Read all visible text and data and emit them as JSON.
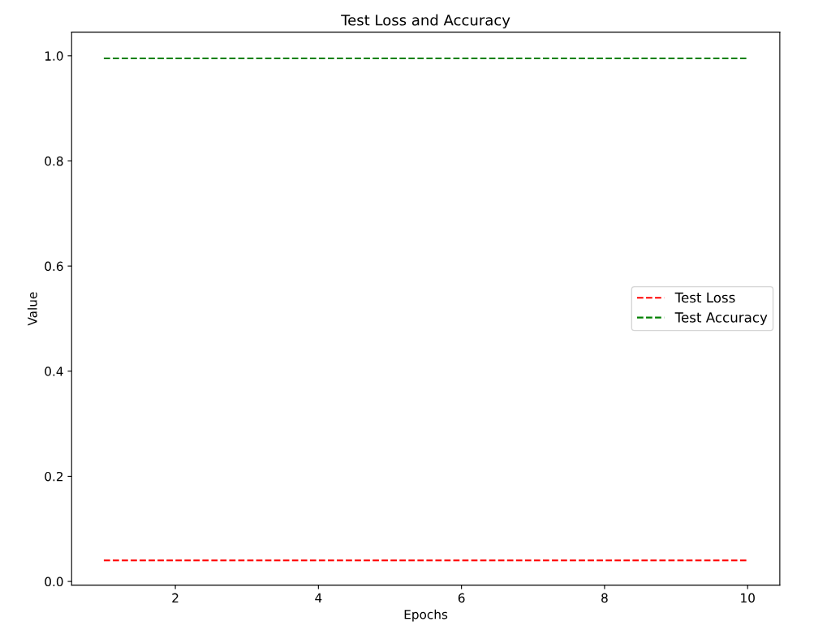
{
  "chart_data": {
    "type": "line",
    "title": "Test Loss and Accuracy",
    "xlabel": "Epochs",
    "ylabel": "Value",
    "x": [
      1,
      10
    ],
    "series": [
      {
        "name": "Test Loss",
        "color": "#ff0000",
        "values": [
          0.04,
          0.04
        ]
      },
      {
        "name": "Test Accuracy",
        "color": "#008000",
        "values": [
          0.995,
          0.995
        ]
      }
    ],
    "xlim": [
      0.55,
      10.45
    ],
    "xticks": [
      2,
      4,
      6,
      8,
      10
    ],
    "ylim": [
      -0.007,
      1.045
    ],
    "yticks": [
      {
        "value": 0,
        "label": "0.0"
      },
      0.2,
      0.4,
      0.6,
      0.8,
      {
        "value": 1,
        "label": "1.0"
      }
    ],
    "line_style": "dashed",
    "legend": "right",
    "grid": false
  }
}
